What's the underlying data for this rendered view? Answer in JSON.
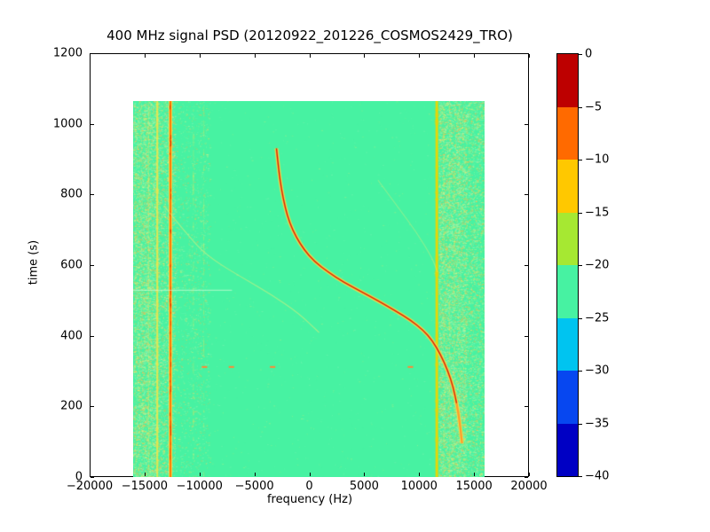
{
  "chart_data": {
    "type": "heatmap",
    "title": "400 MHz signal PSD (20120922_201226_COSMOS2429_TRO)",
    "xlabel": "frequency (Hz)",
    "ylabel": "time (s)",
    "xlim": [
      -20000,
      20000
    ],
    "ylim": [
      0,
      1200
    ],
    "grid": false,
    "x_ticks": [
      {
        "value": -20000,
        "label": "−20000"
      },
      {
        "value": -15000,
        "label": "−15000"
      },
      {
        "value": -10000,
        "label": "−10000"
      },
      {
        "value": -5000,
        "label": "−5000"
      },
      {
        "value": 0,
        "label": "0"
      },
      {
        "value": 5000,
        "label": "5000"
      },
      {
        "value": 10000,
        "label": "10000"
      },
      {
        "value": 15000,
        "label": "15000"
      },
      {
        "value": 20000,
        "label": "20000"
      }
    ],
    "y_ticks": [
      {
        "value": 0,
        "label": "0"
      },
      {
        "value": 200,
        "label": "200"
      },
      {
        "value": 400,
        "label": "400"
      },
      {
        "value": 600,
        "label": "600"
      },
      {
        "value": 800,
        "label": "800"
      },
      {
        "value": 1000,
        "label": "1000"
      },
      {
        "value": 1200,
        "label": "1200"
      }
    ],
    "colorbar": {
      "range": [
        0,
        -40
      ],
      "ticks": [
        {
          "value": 0,
          "label": "0"
        },
        {
          "value": -5,
          "label": "−5"
        },
        {
          "value": -10,
          "label": "−10"
        },
        {
          "value": -15,
          "label": "−15"
        },
        {
          "value": -20,
          "label": "−20"
        },
        {
          "value": -25,
          "label": "−25"
        },
        {
          "value": -30,
          "label": "−30"
        },
        {
          "value": -35,
          "label": "−35"
        },
        {
          "value": -40,
          "label": "−40"
        }
      ],
      "levels": [
        {
          "from": 0,
          "to": -5,
          "color": "#bd0000"
        },
        {
          "from": -5,
          "to": -10,
          "color": "#ff6a00"
        },
        {
          "from": -10,
          "to": -15,
          "color": "#ffc800"
        },
        {
          "from": -15,
          "to": -20,
          "color": "#a6e832"
        },
        {
          "from": -20,
          "to": -25,
          "color": "#47f2a2"
        },
        {
          "from": -25,
          "to": -30,
          "color": "#00c4f0"
        },
        {
          "from": -30,
          "to": -35,
          "color": "#0747f0"
        },
        {
          "from": -35,
          "to": -40,
          "color": "#0000c4"
        }
      ]
    },
    "spectrogram": {
      "freq_extent_hz": [
        -16000,
        16000
      ],
      "time_extent_s": [
        0,
        1064
      ],
      "background_level_db": -22,
      "background_color": "#47f2a2",
      "vertical_lines": [
        {
          "freq": -14600,
          "width": 1,
          "color": "rgba(240,235,90,0.35)",
          "style": "solid"
        },
        {
          "freq": -13800,
          "width": 2,
          "color": "rgba(244,230,70,0.85)",
          "style": "solid"
        },
        {
          "freq": -12600,
          "width": 2,
          "color": "#ff7a00",
          "halo_color": "#ffd84a",
          "style": "core-halo"
        },
        {
          "freq": -10550,
          "width": 1,
          "color": "rgba(240,235,90,0.30)",
          "style": "dashed"
        },
        {
          "freq": -9600,
          "width": 1,
          "color": "rgba(240,235,90,0.25)",
          "style": "dashed"
        },
        {
          "freq": 11650,
          "width": 3,
          "color": "rgba(237,213,0,0.95)",
          "style": "solid"
        },
        {
          "freq": 12250,
          "width": 1,
          "color": "rgba(240,235,90,0.30)",
          "style": "dashed"
        },
        {
          "freq": 12750,
          "width": 1,
          "color": "rgba(240,235,90,0.25)",
          "style": "dashed"
        },
        {
          "freq": 13200,
          "width": 1,
          "color": "rgba(240,235,90,0.22)",
          "style": "dashed"
        }
      ],
      "doppler_curve": {
        "halo_color": "rgba(255,225,70,0.85)",
        "mid_color": "rgba(255,150,40,0.9)",
        "core_color": "rgba(200,25,5,0.95)",
        "core_min_time_s": 200,
        "points_freq_time": [
          [
            -2950,
            930
          ],
          [
            -2750,
            870
          ],
          [
            -2500,
            815
          ],
          [
            -2150,
            762
          ],
          [
            -1750,
            719
          ],
          [
            -1150,
            679
          ],
          [
            -450,
            644
          ],
          [
            500,
            610
          ],
          [
            1750,
            580
          ],
          [
            3200,
            551
          ],
          [
            4800,
            524
          ],
          [
            6400,
            497
          ],
          [
            7950,
            469
          ],
          [
            9250,
            444
          ],
          [
            10400,
            416
          ],
          [
            11250,
            386
          ],
          [
            12000,
            346
          ],
          [
            12650,
            301
          ],
          [
            13150,
            254
          ],
          [
            13450,
            209
          ],
          [
            13700,
            165
          ],
          [
            13950,
            95
          ]
        ]
      },
      "faint_curves": [
        {
          "color": "rgba(235,240,120,0.55)",
          "points_freq_time": [
            [
              -13200,
              768
            ],
            [
              -10550,
              665
            ],
            [
              -8770,
              615
            ],
            [
              -6100,
              565
            ],
            [
              -3350,
              515
            ],
            [
              -930,
              464
            ],
            [
              930,
              409
            ]
          ]
        },
        {
          "color": "rgba(235,240,120,0.40)",
          "points_freq_time": [
            [
              6300,
              840
            ],
            [
              8200,
              760
            ],
            [
              9800,
              693
            ],
            [
              11270,
              618
            ],
            [
              11700,
              580
            ]
          ]
        }
      ],
      "horizontal_line": {
        "time": 530,
        "freq_from": -16000,
        "freq_to": -7000,
        "color": "rgba(220,255,220,0.7)"
      },
      "dash_marks": {
        "time": 314,
        "freqs": [
          -9500,
          -7050,
          -3300,
          9250
        ],
        "color": "#ff8833"
      },
      "noise_bands": [
        {
          "freq_from": -16000,
          "freq_to": -12200,
          "density": "heavy"
        },
        {
          "freq_from": -12200,
          "freq_to": -9000,
          "density": "moderate"
        },
        {
          "freq_from": -9000,
          "freq_to": 11500,
          "density": "sparse"
        },
        {
          "freq_from": 11800,
          "freq_to": 16000,
          "density": "heavy"
        }
      ]
    }
  }
}
